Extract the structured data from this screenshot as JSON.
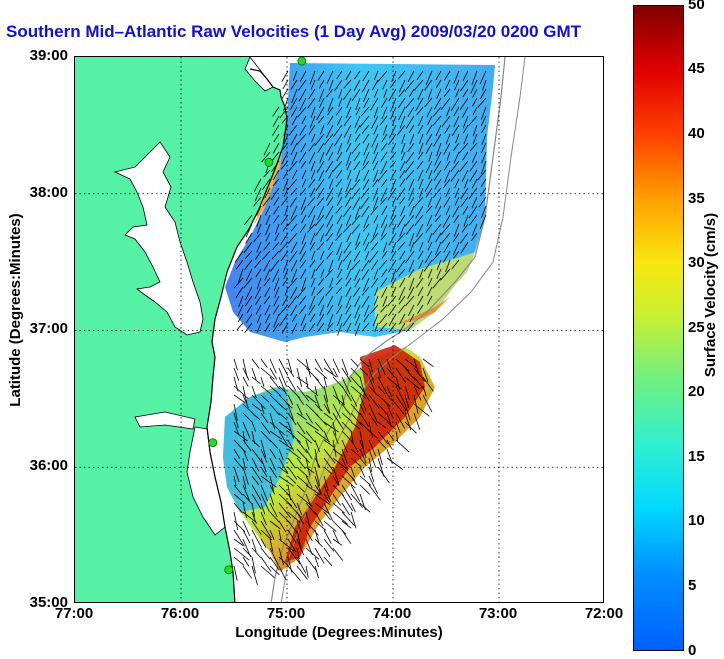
{
  "title": "Southern Mid–Atlantic Raw Velocities (1 Day Avg) 2009/03/20 0200 GMT",
  "axes": {
    "xlabel": "Longitude (Degrees:Minutes)",
    "ylabel": "Latitude (Degrees:Minutes)",
    "xticks": [
      "77:00",
      "76:00",
      "75:00",
      "74:00",
      "73:00",
      "72:00"
    ],
    "yticks": [
      "39:00",
      "38:00",
      "37:00",
      "36:00",
      "35:00"
    ],
    "xlim": [
      -77,
      -72
    ],
    "ylim": [
      35,
      39
    ]
  },
  "colorbar": {
    "label": "Surface Velocity (cm/s)",
    "ticks": [
      "50",
      "45",
      "40",
      "35",
      "30",
      "25",
      "20",
      "15",
      "10",
      "5",
      "0"
    ],
    "range": [
      0,
      50
    ]
  },
  "colors": {
    "land": "#55f2a6",
    "title": "#1010d0",
    "station": "#22dd22"
  },
  "stations": [
    {
      "lon": -74.86,
      "lat": 38.97
    },
    {
      "lon": -75.17,
      "lat": 38.23
    },
    {
      "lon": -75.7,
      "lat": 36.18
    },
    {
      "lon": -75.55,
      "lat": 35.25
    }
  ]
}
